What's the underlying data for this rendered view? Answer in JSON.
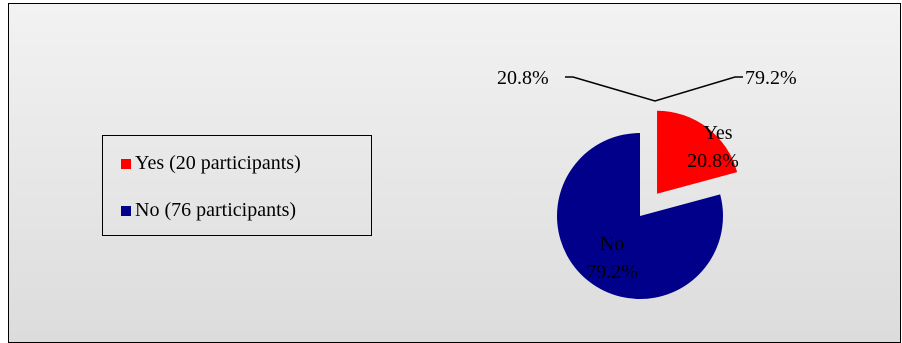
{
  "chart_data": {
    "type": "pie",
    "categories": [
      "Yes",
      "No"
    ],
    "values": [
      20.8,
      79.2
    ],
    "colors": [
      "#ff0000",
      "#00008b"
    ],
    "slice_labels": [
      {
        "name": "Yes",
        "percent": "20.8%"
      },
      {
        "name": "No",
        "percent": "79.2%"
      }
    ],
    "callout_labels": [
      "20.8%",
      "79.2%"
    ],
    "exploded_slice": "Yes",
    "legend": {
      "placement": "left",
      "entries": [
        "Yes (20 participants)",
        "No (76 participants)"
      ]
    },
    "title": ""
  }
}
